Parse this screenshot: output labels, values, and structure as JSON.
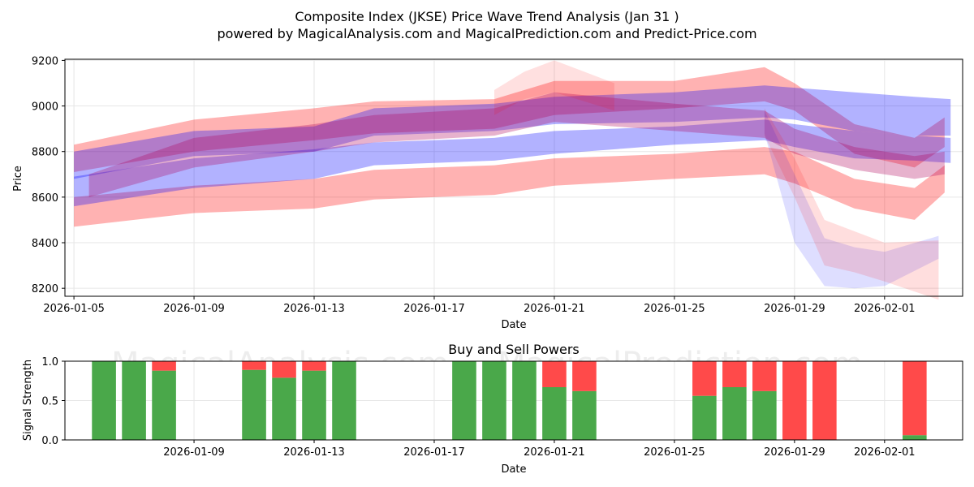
{
  "title": "Composite Index (JKSE) Price Wave Trend Analysis (Jan 31 )",
  "subtitle": "powered by MagicalAnalysis.com and MagicalPrediction.com and Predict-Price.com",
  "watermarks": [
    "MagicalAnalysis.com",
    "MagicalPrediction.com"
  ],
  "colors": {
    "red": "#ff0000",
    "blue": "#0000ff",
    "green": "#4aa84a",
    "sell": "#ff4a4a"
  },
  "chart_data": [
    {
      "type": "area",
      "name": "price-wave",
      "xlabel": "Date",
      "ylabel": "Price",
      "xlim": [
        -0.3,
        29.6
      ],
      "ylim": [
        8165,
        9205
      ],
      "x_dates": [
        "2026-01-05",
        "2026-01-06",
        "2026-01-07",
        "2026-01-08",
        "2026-01-09",
        "2026-01-10",
        "2026-01-11",
        "2026-01-12",
        "2026-01-13",
        "2026-01-14",
        "2026-01-15",
        "2026-01-16",
        "2026-01-17",
        "2026-01-18",
        "2026-01-19",
        "2026-01-20",
        "2026-01-21",
        "2026-01-22",
        "2026-01-23",
        "2026-01-24",
        "2026-01-25",
        "2026-01-26",
        "2026-01-27",
        "2026-01-28",
        "2026-01-29",
        "2026-01-30",
        "2026-01-31",
        "2026-02-01",
        "2026-02-02",
        "2026-02-03"
      ],
      "xtick_index": [
        0,
        4,
        8,
        12,
        16,
        20,
        24,
        27
      ],
      "xtick_labels": [
        "2026-01-05",
        "2026-01-09",
        "2026-01-13",
        "2026-01-17",
        "2026-01-21",
        "2026-01-25",
        "2026-01-29",
        "2026-02-01"
      ],
      "yticks": [
        8200,
        8400,
        8600,
        8800,
        9000,
        9200
      ],
      "grid": true,
      "series": [
        {
          "name": "red-upper",
          "color": "red",
          "opacity": 0.3,
          "x": [
            0,
            4,
            8,
            10,
            14,
            16,
            20,
            23,
            24,
            26,
            28,
            29
          ],
          "upper": [
            8830,
            8940,
            8990,
            9020,
            9030,
            9110,
            9110,
            9170,
            9100,
            8920,
            8860,
            8950
          ],
          "lower": [
            8710,
            8800,
            8850,
            8880,
            8900,
            8960,
            8990,
            9020,
            8980,
            8790,
            8730,
            8820
          ]
        },
        {
          "name": "red-lower",
          "color": "red",
          "opacity": 0.3,
          "x": [
            0,
            4,
            8,
            10,
            14,
            16,
            20,
            23,
            24,
            26,
            28,
            29
          ],
          "upper": [
            8600,
            8650,
            8680,
            8720,
            8740,
            8770,
            8790,
            8820,
            8800,
            8680,
            8640,
            8740
          ],
          "lower": [
            8470,
            8530,
            8550,
            8590,
            8610,
            8650,
            8680,
            8700,
            8660,
            8550,
            8500,
            8620
          ]
        },
        {
          "name": "blue-upper",
          "color": "blue",
          "opacity": 0.3,
          "x": [
            0,
            4,
            8,
            10,
            14,
            16,
            20,
            23,
            24,
            26,
            28,
            29.2
          ],
          "upper": [
            8800,
            8890,
            8910,
            8990,
            9010,
            9040,
            9060,
            9090,
            9080,
            9060,
            9040,
            9030
          ],
          "lower": [
            8680,
            8780,
            8800,
            8870,
            8890,
            8920,
            8930,
            8950,
            8940,
            8890,
            8870,
            8870
          ]
        },
        {
          "name": "blue-lower",
          "color": "blue",
          "opacity": 0.3,
          "x": [
            0,
            4,
            8,
            10,
            14,
            16,
            20,
            23,
            24,
            26,
            28,
            29.2
          ],
          "upper": [
            8690,
            8770,
            8810,
            8840,
            8860,
            8890,
            8910,
            8940,
            8920,
            8890,
            8870,
            8860
          ],
          "lower": [
            8560,
            8640,
            8680,
            8740,
            8760,
            8790,
            8830,
            8850,
            8820,
            8770,
            8760,
            8750
          ]
        },
        {
          "name": "magenta-core",
          "color": "#b0005a",
          "opacity": 0.3,
          "x": [
            0.5,
            4,
            8,
            10,
            14,
            16,
            20,
            23,
            24,
            26,
            28,
            29
          ],
          "upper": [
            8700,
            8860,
            8920,
            8960,
            8990,
            9060,
            9010,
            8980,
            8900,
            8820,
            8780,
            8800
          ],
          "lower": [
            8600,
            8730,
            8800,
            8840,
            8870,
            8930,
            8890,
            8860,
            8790,
            8720,
            8680,
            8700
          ]
        },
        {
          "name": "blue-crash",
          "color": "blue",
          "opacity": 0.13,
          "x": [
            23,
            24,
            25,
            26,
            27,
            28.8
          ],
          "upper": [
            8980,
            8700,
            8420,
            8380,
            8360,
            8430
          ],
          "lower": [
            8880,
            8400,
            8210,
            8200,
            8210,
            8330
          ]
        },
        {
          "name": "red-crash",
          "color": "red",
          "opacity": 0.13,
          "x": [
            23,
            24,
            25,
            26,
            27,
            28.8
          ],
          "upper": [
            8990,
            8770,
            8500,
            8450,
            8400,
            8410
          ],
          "lower": [
            8870,
            8600,
            8300,
            8270,
            8230,
            8150
          ]
        },
        {
          "name": "red-spike",
          "color": "red",
          "opacity": 0.12,
          "x": [
            14,
            15,
            16,
            17,
            18
          ],
          "upper": [
            9070,
            9150,
            9200,
            9150,
            9100
          ],
          "lower": [
            8960,
            9030,
            9060,
            9020,
            8980
          ]
        }
      ]
    },
    {
      "type": "bar",
      "name": "buy-sell-powers",
      "title": "Buy and Sell Powers",
      "xlabel": "Date",
      "ylabel": "Signal Strength",
      "xlim": [
        -0.3,
        29.6
      ],
      "ylim": [
        0,
        1
      ],
      "yticks": [
        0.0,
        0.5,
        1.0
      ],
      "ytick_labels": [
        "0.0",
        "0.5",
        "1.0"
      ],
      "xtick_index": [
        4,
        8,
        12,
        16,
        20,
        24,
        27
      ],
      "xtick_labels": [
        "2026-01-09",
        "2026-01-13",
        "2026-01-17",
        "2026-01-21",
        "2026-01-25",
        "2026-01-29",
        "2026-02-01"
      ],
      "categories": [
        "2026-01-06",
        "2026-01-07",
        "2026-01-08",
        "2026-01-11",
        "2026-01-12",
        "2026-01-13",
        "2026-01-14",
        "2026-01-18",
        "2026-01-19",
        "2026-01-20",
        "2026-01-21",
        "2026-01-22",
        "2026-01-26",
        "2026-01-27",
        "2026-01-28",
        "2026-01-29",
        "2026-01-30",
        "2026-02-02"
      ],
      "x_index": [
        1,
        2,
        3,
        6,
        7,
        8,
        9,
        13,
        14,
        15,
        16,
        17,
        21,
        22,
        23,
        24,
        25,
        28
      ],
      "series": [
        {
          "name": "Buy",
          "color": "green",
          "values": [
            1.0,
            1.0,
            0.88,
            0.89,
            0.79,
            0.88,
            1.0,
            1.0,
            1.0,
            1.0,
            0.67,
            0.62,
            0.56,
            0.67,
            0.62,
            0.0,
            0.0,
            0.06
          ]
        },
        {
          "name": "Sell",
          "color": "sell",
          "values": [
            0.0,
            0.0,
            0.12,
            0.11,
            0.21,
            0.12,
            0.0,
            0.0,
            0.0,
            0.0,
            0.33,
            0.38,
            0.44,
            0.33,
            0.38,
            1.0,
            1.0,
            0.94
          ]
        }
      ]
    }
  ]
}
